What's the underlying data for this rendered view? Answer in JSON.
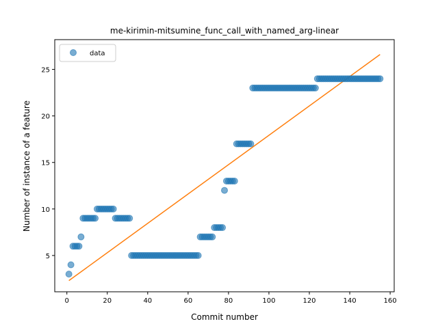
{
  "chart_data": {
    "type": "scatter",
    "title": "me-kirimin-mitsumine_func_call_with_named_arg-linear",
    "xlabel": "Commit number",
    "ylabel": "Number of instance of a feature",
    "xlim": [
      -6,
      162
    ],
    "ylim": [
      1.1,
      28.2
    ],
    "xticks": [
      0,
      20,
      40,
      60,
      80,
      100,
      120,
      140,
      160
    ],
    "yticks": [
      5,
      10,
      15,
      20,
      25
    ],
    "grid": false,
    "legend": {
      "placement": "top-left",
      "entries": [
        "data"
      ]
    },
    "colors": {
      "data": "#1f77b4",
      "fit": "#ff7f0e"
    },
    "series": [
      {
        "name": "data",
        "kind": "scatter",
        "points": [
          [
            1,
            3
          ],
          [
            2,
            4
          ],
          [
            3,
            6
          ],
          [
            4,
            6
          ],
          [
            5,
            6
          ],
          [
            6,
            6
          ],
          [
            7,
            7
          ],
          [
            8,
            9
          ],
          [
            9,
            9
          ],
          [
            10,
            9
          ],
          [
            11,
            9
          ],
          [
            12,
            9
          ],
          [
            13,
            9
          ],
          [
            14,
            9
          ],
          [
            15,
            10
          ],
          [
            16,
            10
          ],
          [
            17,
            10
          ],
          [
            18,
            10
          ],
          [
            19,
            10
          ],
          [
            20,
            10
          ],
          [
            21,
            10
          ],
          [
            22,
            10
          ],
          [
            23,
            10
          ],
          [
            24,
            9
          ],
          [
            25,
            9
          ],
          [
            26,
            9
          ],
          [
            27,
            9
          ],
          [
            28,
            9
          ],
          [
            29,
            9
          ],
          [
            30,
            9
          ],
          [
            31,
            9
          ],
          [
            32,
            5
          ],
          [
            33,
            5
          ],
          [
            34,
            5
          ],
          [
            35,
            5
          ],
          [
            36,
            5
          ],
          [
            37,
            5
          ],
          [
            38,
            5
          ],
          [
            39,
            5
          ],
          [
            40,
            5
          ],
          [
            41,
            5
          ],
          [
            42,
            5
          ],
          [
            43,
            5
          ],
          [
            44,
            5
          ],
          [
            45,
            5
          ],
          [
            46,
            5
          ],
          [
            47,
            5
          ],
          [
            48,
            5
          ],
          [
            49,
            5
          ],
          [
            50,
            5
          ],
          [
            51,
            5
          ],
          [
            52,
            5
          ],
          [
            53,
            5
          ],
          [
            54,
            5
          ],
          [
            55,
            5
          ],
          [
            56,
            5
          ],
          [
            57,
            5
          ],
          [
            58,
            5
          ],
          [
            59,
            5
          ],
          [
            60,
            5
          ],
          [
            61,
            5
          ],
          [
            62,
            5
          ],
          [
            63,
            5
          ],
          [
            64,
            5
          ],
          [
            65,
            5
          ],
          [
            66,
            7
          ],
          [
            67,
            7
          ],
          [
            68,
            7
          ],
          [
            69,
            7
          ],
          [
            70,
            7
          ],
          [
            71,
            7
          ],
          [
            72,
            7
          ],
          [
            73,
            8
          ],
          [
            74,
            8
          ],
          [
            75,
            8
          ],
          [
            76,
            8
          ],
          [
            77,
            8
          ],
          [
            78,
            12
          ],
          [
            79,
            13
          ],
          [
            80,
            13
          ],
          [
            81,
            13
          ],
          [
            82,
            13
          ],
          [
            83,
            13
          ],
          [
            84,
            17
          ],
          [
            85,
            17
          ],
          [
            86,
            17
          ],
          [
            87,
            17
          ],
          [
            88,
            17
          ],
          [
            89,
            17
          ],
          [
            90,
            17
          ],
          [
            91,
            17
          ],
          [
            92,
            23
          ],
          [
            93,
            23
          ],
          [
            94,
            23
          ],
          [
            95,
            23
          ],
          [
            96,
            23
          ],
          [
            97,
            23
          ],
          [
            98,
            23
          ],
          [
            99,
            23
          ],
          [
            100,
            23
          ],
          [
            101,
            23
          ],
          [
            102,
            23
          ],
          [
            103,
            23
          ],
          [
            104,
            23
          ],
          [
            105,
            23
          ],
          [
            106,
            23
          ],
          [
            107,
            23
          ],
          [
            108,
            23
          ],
          [
            109,
            23
          ],
          [
            110,
            23
          ],
          [
            111,
            23
          ],
          [
            112,
            23
          ],
          [
            113,
            23
          ],
          [
            114,
            23
          ],
          [
            115,
            23
          ],
          [
            116,
            23
          ],
          [
            117,
            23
          ],
          [
            118,
            23
          ],
          [
            119,
            23
          ],
          [
            120,
            23
          ],
          [
            121,
            23
          ],
          [
            122,
            23
          ],
          [
            123,
            23
          ],
          [
            124,
            24
          ],
          [
            125,
            24
          ],
          [
            126,
            24
          ],
          [
            127,
            24
          ],
          [
            128,
            24
          ],
          [
            129,
            24
          ],
          [
            130,
            24
          ],
          [
            131,
            24
          ],
          [
            132,
            24
          ],
          [
            133,
            24
          ],
          [
            134,
            24
          ],
          [
            135,
            24
          ],
          [
            136,
            24
          ],
          [
            137,
            24
          ],
          [
            138,
            24
          ],
          [
            139,
            24
          ],
          [
            140,
            24
          ],
          [
            141,
            24
          ],
          [
            142,
            24
          ],
          [
            143,
            24
          ],
          [
            144,
            24
          ],
          [
            145,
            24
          ],
          [
            146,
            24
          ],
          [
            147,
            24
          ],
          [
            148,
            24
          ],
          [
            149,
            24
          ],
          [
            150,
            24
          ],
          [
            151,
            24
          ],
          [
            152,
            24
          ],
          [
            153,
            24
          ],
          [
            154,
            24
          ],
          [
            155,
            24
          ]
        ]
      },
      {
        "name": "",
        "kind": "line",
        "points": [
          [
            1,
            2.3
          ],
          [
            155,
            26.6
          ]
        ]
      }
    ]
  }
}
